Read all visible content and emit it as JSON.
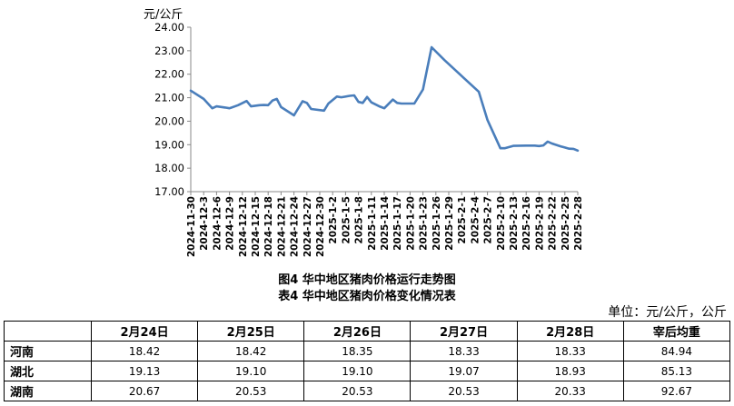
{
  "chart_data": {
    "type": "line",
    "y_unit": "元/公斤",
    "ylim": [
      17.0,
      24.0
    ],
    "y_ticks": [
      "24.00",
      "23.00",
      "22.00",
      "21.00",
      "20.00",
      "19.00",
      "18.00",
      "17.00"
    ],
    "x_tick_labels": [
      "2024-11-30",
      "2024-12-3",
      "2024-12-6",
      "2024-12-9",
      "2024-12-12",
      "2024-12-15",
      "2024-12-18",
      "2024-12-21",
      "2024-12-24",
      "2024-12-27",
      "2024-12-30",
      "2025-1-2",
      "2025-1-5",
      "2025-1-8",
      "2025-1-11",
      "2025-1-14",
      "2025-1-17",
      "2025-1-20",
      "2025-1-23",
      "2025-1-26",
      "2025-1-29",
      "2025-2-1",
      "2025-2-4",
      "2025-2-7",
      "2025-2-10",
      "2025-2-13",
      "2025-2-16",
      "2025-2-19",
      "2025-2-22",
      "2025-2-25",
      "2025-2-28"
    ],
    "x_range": [
      "2024-11-30",
      "2025-2-28"
    ],
    "grid": false,
    "line_color": "#4a7ebb",
    "series": [
      {
        "points": [
          [
            "2024-11-30",
            21.3
          ],
          [
            "2024-12-3",
            20.95
          ],
          [
            "2024-12-5",
            20.55
          ],
          [
            "2024-12-6",
            20.63
          ],
          [
            "2024-12-8",
            20.58
          ],
          [
            "2024-12-9",
            20.55
          ],
          [
            "2024-12-11",
            20.68
          ],
          [
            "2024-12-13",
            20.86
          ],
          [
            "2024-12-14",
            20.63
          ],
          [
            "2024-12-16",
            20.68
          ],
          [
            "2024-12-17",
            20.69
          ],
          [
            "2024-12-18",
            20.68
          ],
          [
            "2024-12-19",
            20.88
          ],
          [
            "2024-12-20",
            20.95
          ],
          [
            "2024-12-21",
            20.6
          ],
          [
            "2024-12-24",
            20.25
          ],
          [
            "2024-12-26",
            20.85
          ],
          [
            "2024-12-27",
            20.78
          ],
          [
            "2024-12-28",
            20.52
          ],
          [
            "2024-12-31",
            20.45
          ],
          [
            "2025-1-1",
            20.75
          ],
          [
            "2025-1-3",
            21.05
          ],
          [
            "2025-1-4",
            21.02
          ],
          [
            "2025-1-6",
            21.08
          ],
          [
            "2025-1-7",
            21.1
          ],
          [
            "2025-1-8",
            20.82
          ],
          [
            "2025-1-9",
            20.78
          ],
          [
            "2025-1-10",
            21.03
          ],
          [
            "2025-1-11",
            20.8
          ],
          [
            "2025-1-13",
            20.62
          ],
          [
            "2025-1-14",
            20.55
          ],
          [
            "2025-1-16",
            20.92
          ],
          [
            "2025-1-17",
            20.78
          ],
          [
            "2025-1-18",
            20.75
          ],
          [
            "2025-1-21",
            20.75
          ],
          [
            "2025-1-23",
            21.35
          ],
          [
            "2025-1-25",
            23.15
          ],
          [
            "2025-1-28",
            22.6
          ],
          [
            "2025-2-5",
            21.25
          ],
          [
            "2025-2-7",
            20.05
          ],
          [
            "2025-2-10",
            18.85
          ],
          [
            "2025-2-11",
            18.85
          ],
          [
            "2025-2-13",
            18.95
          ],
          [
            "2025-2-16",
            18.96
          ],
          [
            "2025-2-18",
            18.96
          ],
          [
            "2025-2-19",
            18.94
          ],
          [
            "2025-2-20",
            18.97
          ],
          [
            "2025-2-21",
            19.13
          ],
          [
            "2025-2-22",
            19.05
          ],
          [
            "2025-2-24",
            18.93
          ],
          [
            "2025-2-25",
            18.88
          ],
          [
            "2025-2-26",
            18.83
          ],
          [
            "2025-2-27",
            18.82
          ],
          [
            "2025-2-28",
            18.75
          ]
        ]
      }
    ]
  },
  "captions": {
    "figure": "图4 华中地区猪肉价格运行走势图",
    "table": "表4 华中地区猪肉价格变化情况表"
  },
  "table": {
    "unit": "单位：元/公斤，公斤",
    "headers": [
      "",
      "2月24日",
      "2月25日",
      "2月26日",
      "2月27日",
      "2月28日",
      "宰后均重"
    ],
    "rows": [
      {
        "region": "河南",
        "values": [
          "18.42",
          "18.42",
          "18.35",
          "18.33",
          "18.33",
          "84.94"
        ]
      },
      {
        "region": "湖北",
        "values": [
          "19.13",
          "19.10",
          "19.10",
          "19.07",
          "18.93",
          "85.13"
        ]
      },
      {
        "region": "湖南",
        "values": [
          "20.67",
          "20.53",
          "20.53",
          "20.53",
          "20.33",
          "92.67"
        ]
      }
    ]
  }
}
